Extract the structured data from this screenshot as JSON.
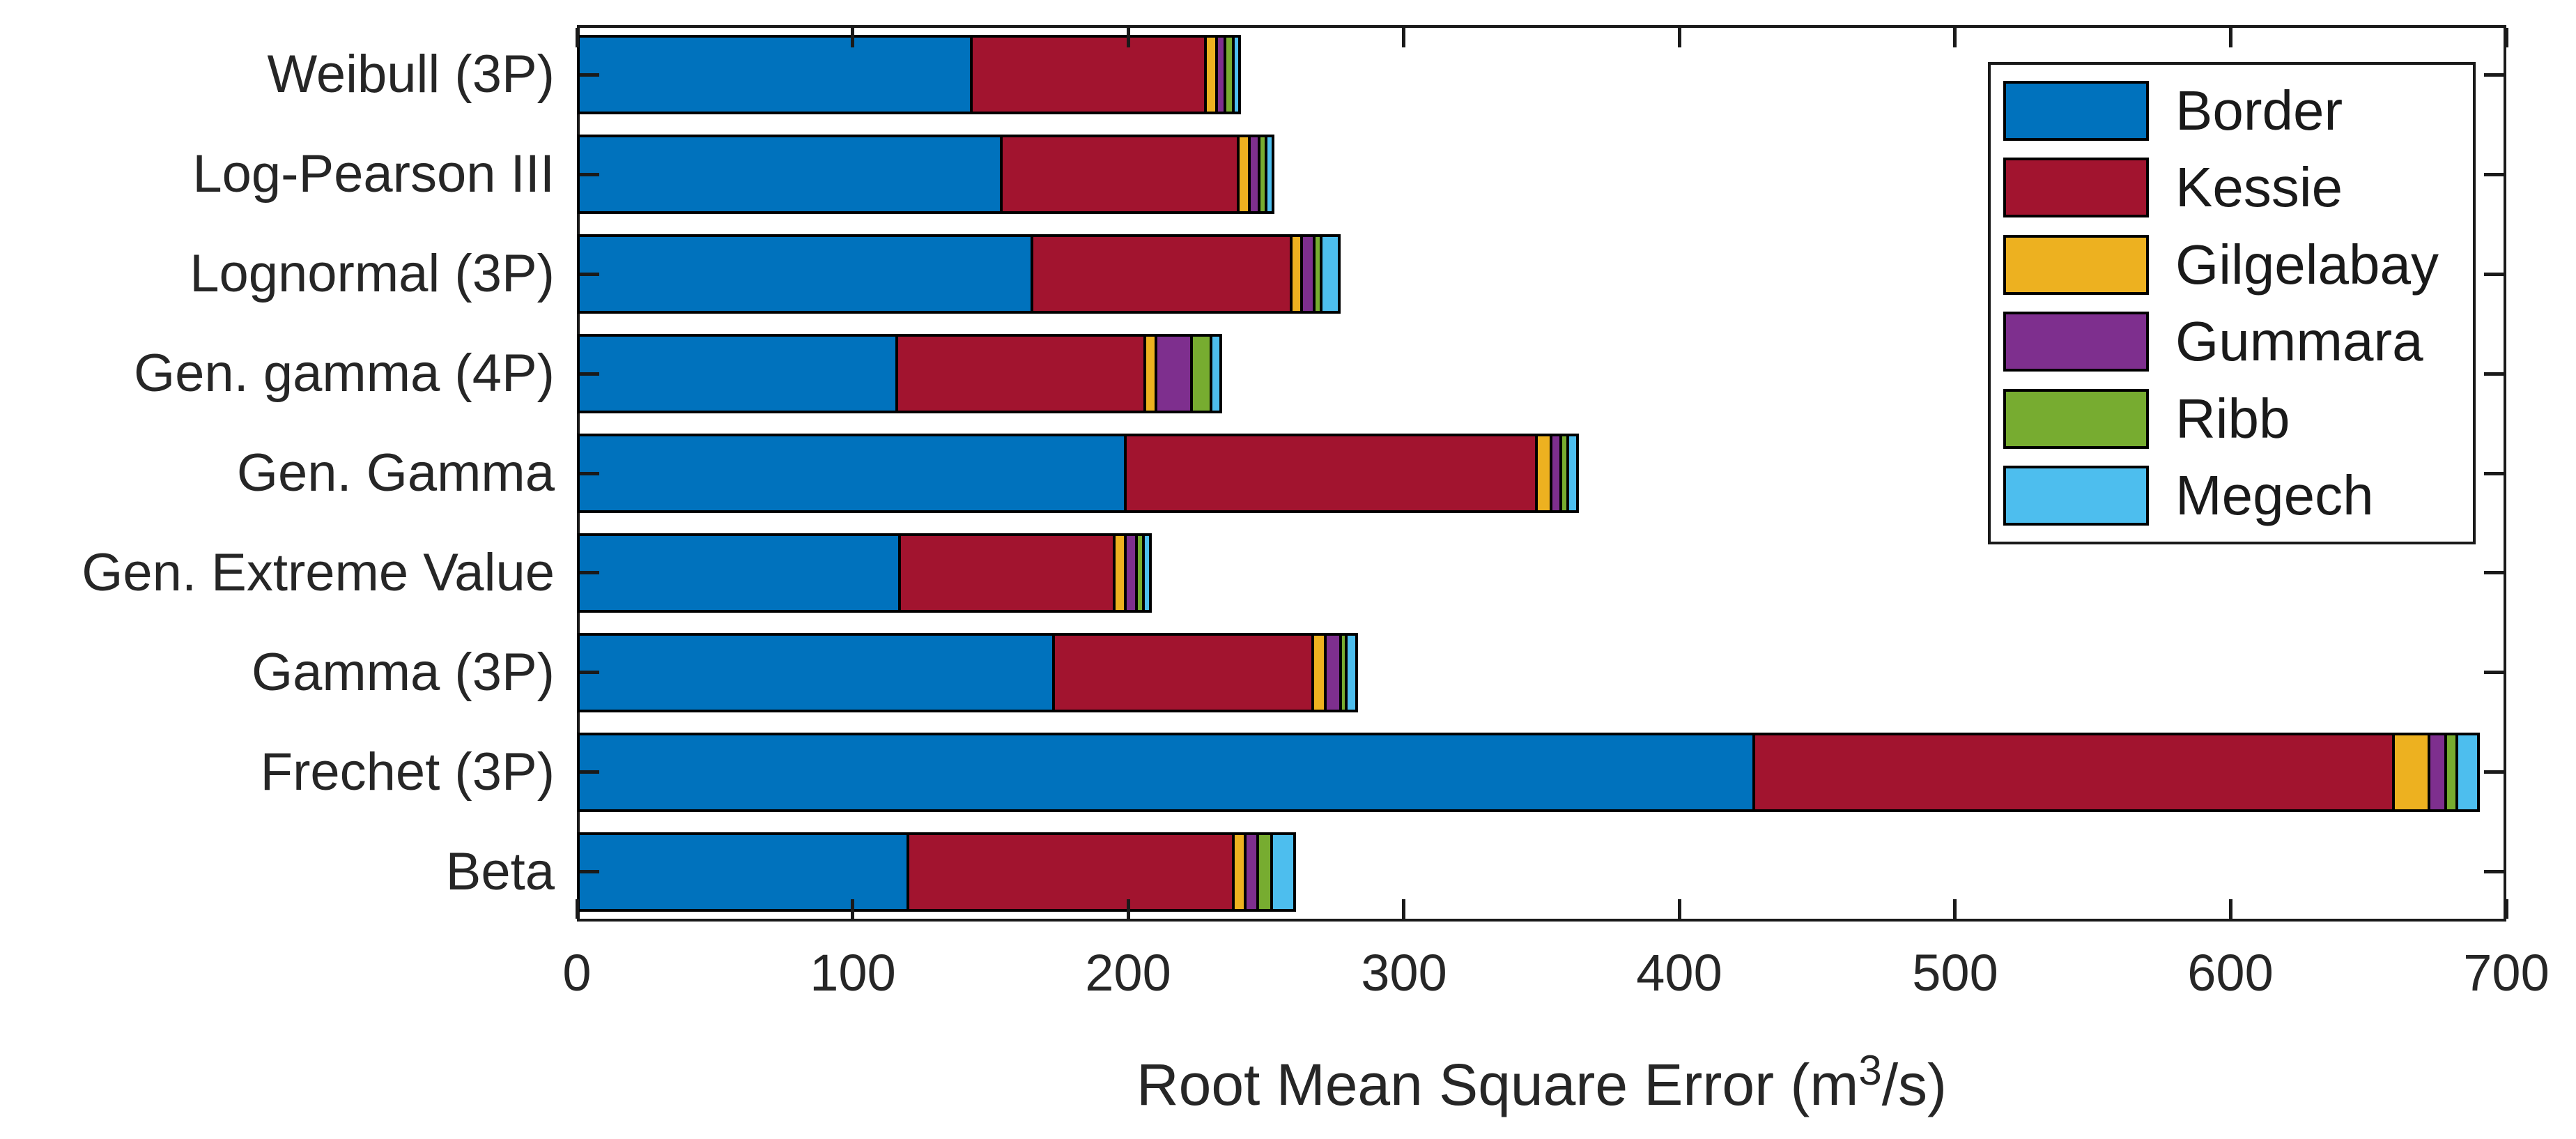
{
  "chart_data": {
    "type": "bar",
    "orientation": "horizontal-stacked",
    "title": "",
    "xlabel_prefix": "Root Mean Square Error (m",
    "xlabel_sup": "3",
    "xlabel_suffix": "/s)",
    "ylabel": "",
    "xlim": [
      0,
      700
    ],
    "xticks": [
      0,
      100,
      200,
      300,
      400,
      500,
      600,
      700
    ],
    "xtick_labels": [
      "0",
      "100",
      "200",
      "300",
      "400",
      "500",
      "600",
      "700"
    ],
    "grid": "off",
    "legend_position": "top-right-inside",
    "categories": [
      "Weibull (3P)",
      "Log-Pearson III",
      "Lognormal (3P)",
      "Gen. gamma (4P)",
      "Gen. Gamma",
      "Gen. Extreme Value",
      "Gamma (3P)",
      "Frechet (3P)",
      "Beta"
    ],
    "series": [
      {
        "name": "Border",
        "color": "#0072BD",
        "values": [
          142,
          153,
          164,
          115,
          198,
          116,
          172,
          426,
          119
        ]
      },
      {
        "name": "Kessie",
        "color": "#A2142F",
        "values": [
          85,
          86,
          94,
          90,
          149,
          78,
          94,
          232,
          118
        ]
      },
      {
        "name": "Gilgelabay",
        "color": "#EDB120",
        "values": [
          4,
          4,
          4,
          4,
          5.5,
          4,
          4.5,
          13,
          4.5
        ]
      },
      {
        "name": "Gummara",
        "color": "#7E2F8E",
        "values": [
          3,
          3.5,
          4.5,
          13,
          3.5,
          4,
          5.5,
          6,
          4.5
        ]
      },
      {
        "name": "Ribb",
        "color": "#77AC30",
        "values": [
          3,
          2.5,
          2.5,
          7,
          2.5,
          2.5,
          2,
          4,
          5
        ]
      },
      {
        "name": "Megech",
        "color": "#4DBEEE",
        "values": [
          4,
          4,
          8,
          5,
          5,
          4,
          5.5,
          9.5,
          10
        ]
      }
    ],
    "bar_totals": [
      241,
      253,
      277,
      234,
      363.5,
      208.5,
      283.5,
      690.5,
      261
    ]
  },
  "axes_color": "#262626",
  "bar_edge_color": "#000000"
}
